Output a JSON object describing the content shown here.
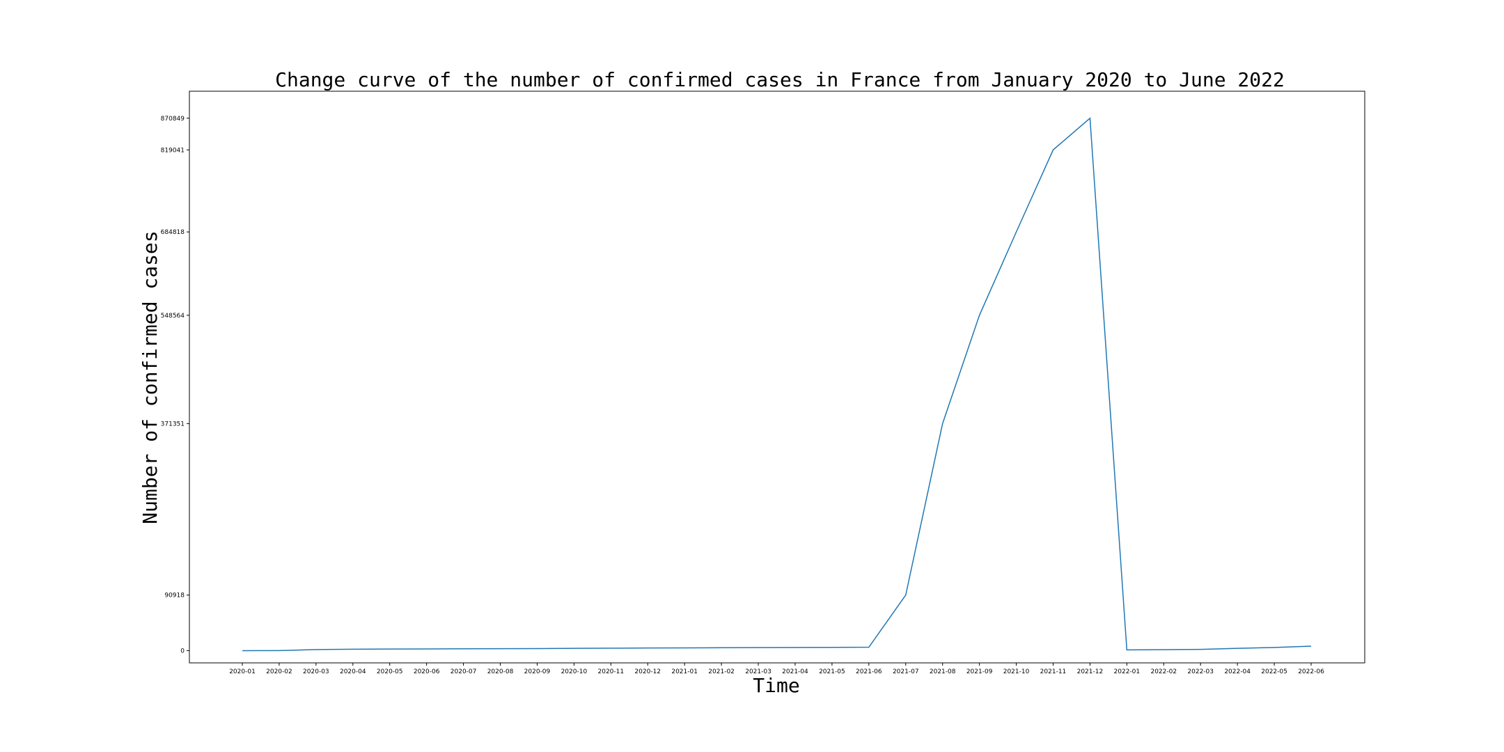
{
  "chart_data": {
    "type": "line",
    "title": "Change curve of the number of confirmed cases in France from January 2020 to June 2022",
    "xlabel": "Time",
    "ylabel": "Number of confirmed cases",
    "grid": false,
    "x": [
      "2020-01",
      "2020-02",
      "2020-03",
      "2020-04",
      "2020-05",
      "2020-06",
      "2020-07",
      "2020-08",
      "2020-09",
      "2020-10",
      "2020-11",
      "2020-12",
      "2021-01",
      "2021-02",
      "2021-03",
      "2021-04",
      "2021-05",
      "2021-06",
      "2021-07",
      "2021-08",
      "2021-09",
      "2021-10",
      "2021-11",
      "2021-12",
      "2022-01",
      "2022-02",
      "2022-03",
      "2022-04",
      "2022-05",
      "2022-06"
    ],
    "series": [
      {
        "color": "#1f77b4",
        "values": [
          1,
          120,
          1800,
          2400,
          2600,
          2800,
          3000,
          3200,
          3300,
          3800,
          4000,
          4300,
          4500,
          4800,
          5000,
          5200,
          5400,
          5600,
          90918,
          371351,
          548564,
          684818,
          819041,
          870849,
          1200,
          1600,
          2100,
          3800,
          5200,
          7400
        ]
      }
    ],
    "yticks": [
      0,
      90918,
      371351,
      548564,
      684818,
      819041,
      870849
    ],
    "ylim": [
      -20000,
      915000
    ]
  }
}
